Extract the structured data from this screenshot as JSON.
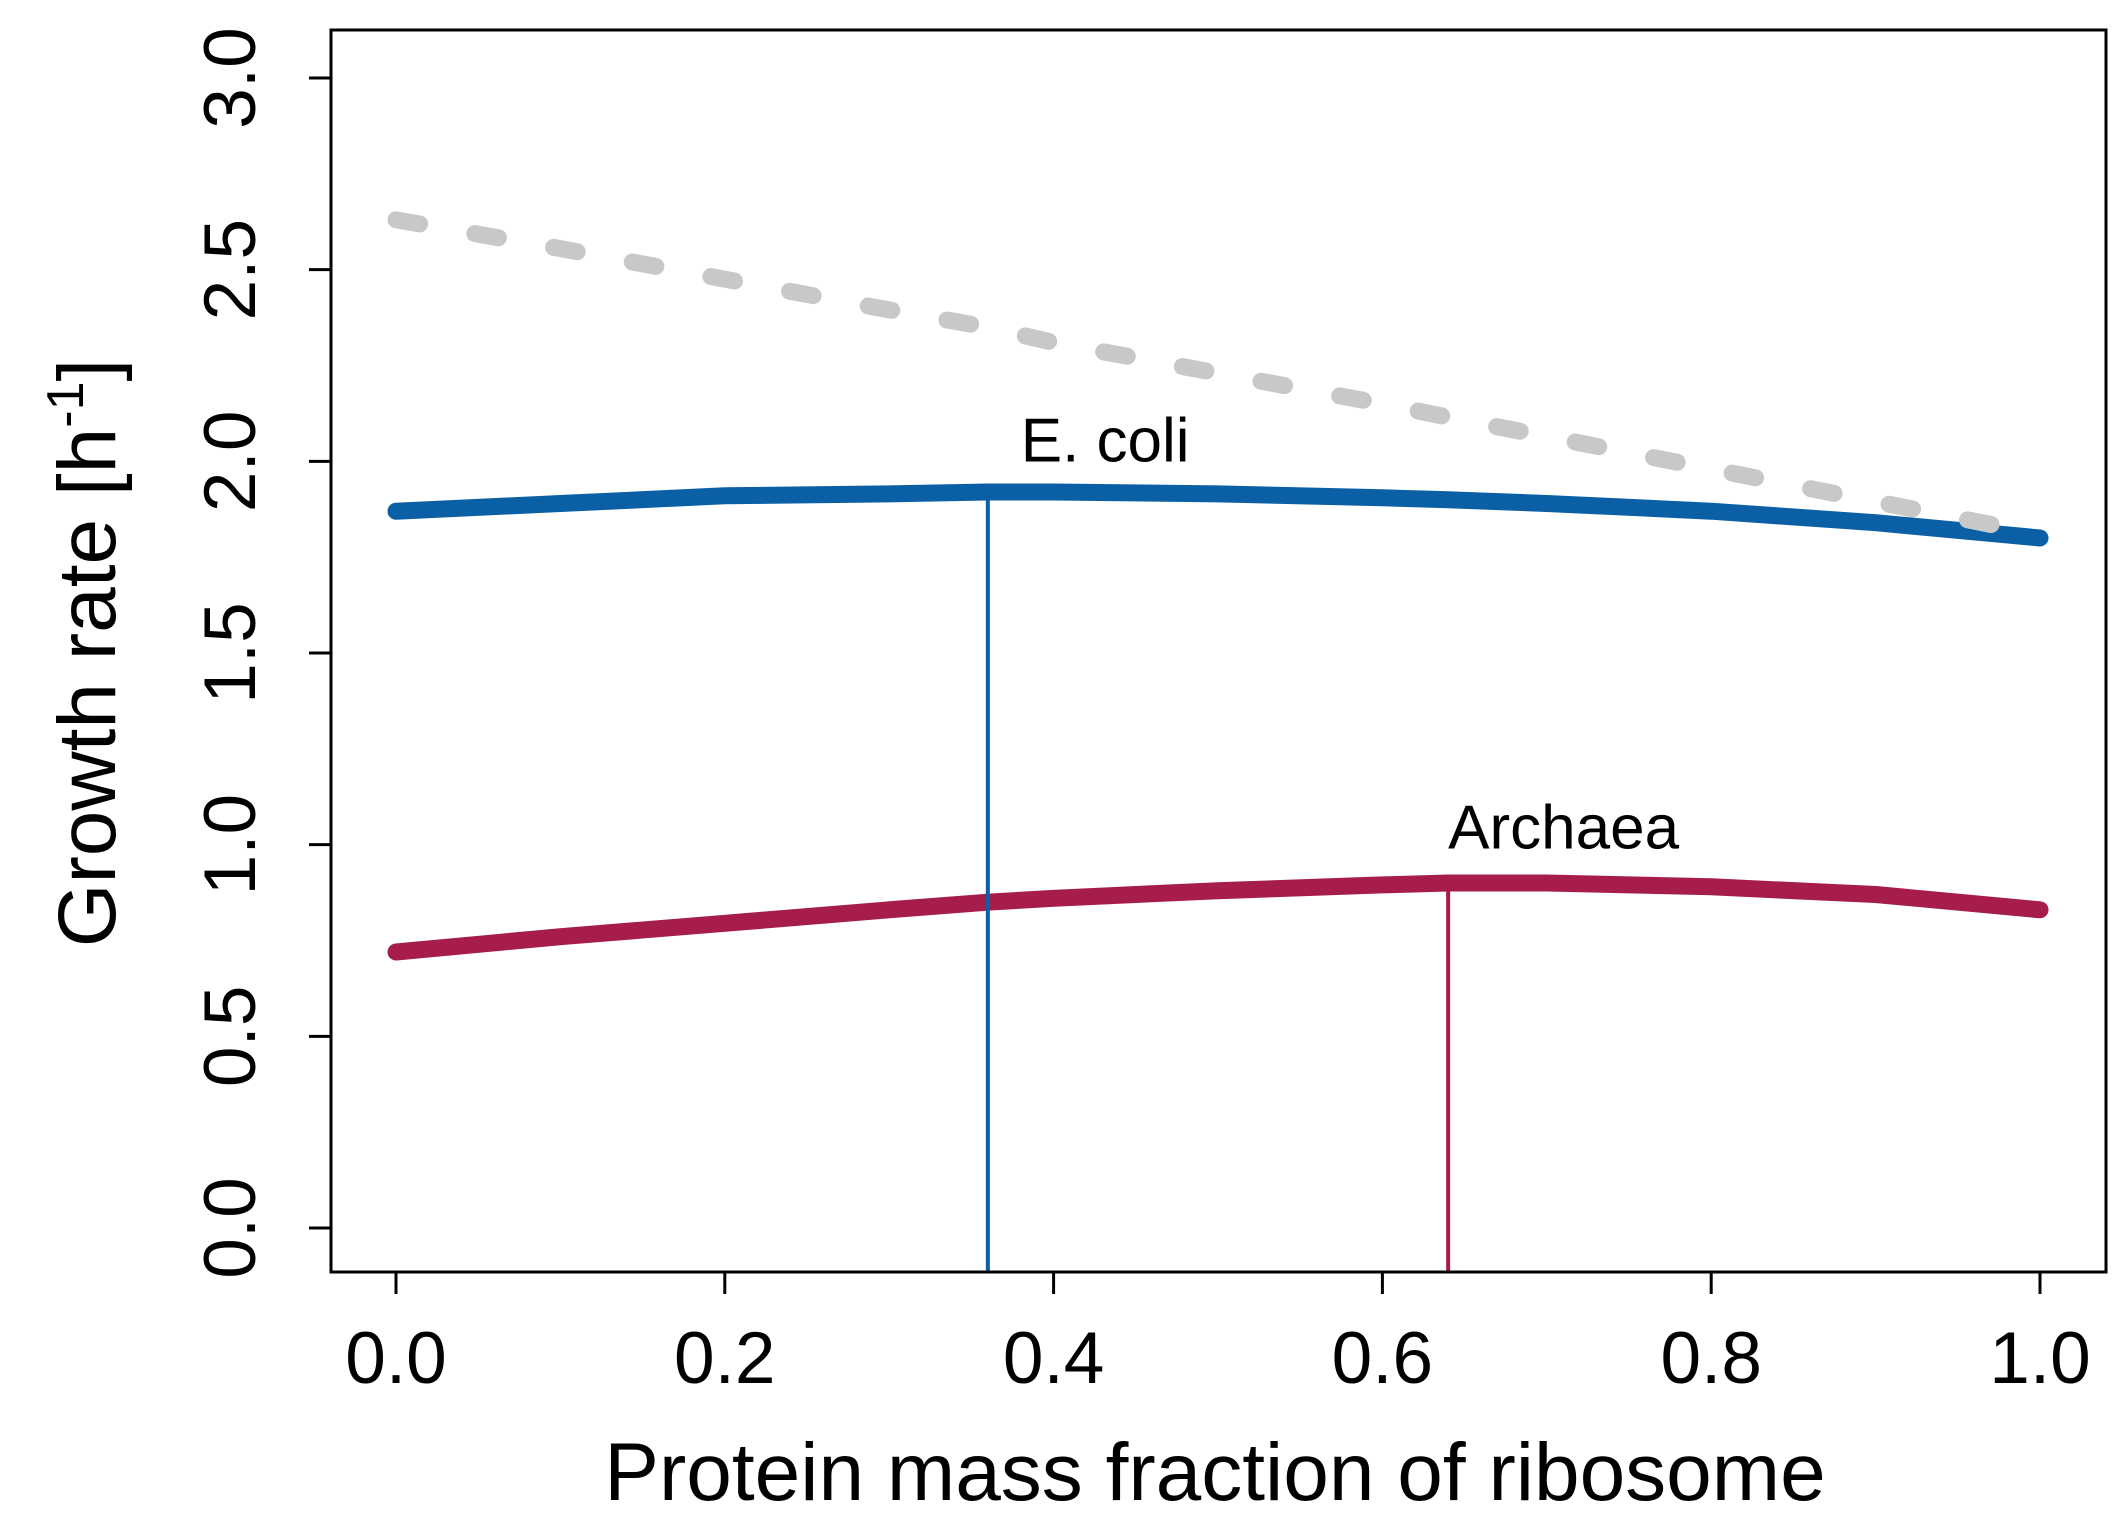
{
  "chart_data": {
    "type": "line",
    "title": "",
    "xlabel": "Protein mass fraction of ribosome",
    "ylabel_main": "Growth rate [h",
    "ylabel_sup": "-1",
    "ylabel_close": "]",
    "xlim": [
      0.0,
      1.0
    ],
    "ylim": [
      0.0,
      3.0
    ],
    "grid": false,
    "x_ticks": [
      "0.0",
      "0.2",
      "0.4",
      "0.6",
      "0.8",
      "1.0"
    ],
    "y_ticks": [
      "0.0",
      "0.5",
      "1.0",
      "1.5",
      "2.0",
      "2.5",
      "3.0"
    ],
    "x": [
      0.0,
      0.1,
      0.2,
      0.3,
      0.36,
      0.4,
      0.5,
      0.6,
      0.64,
      0.7,
      0.8,
      0.9,
      1.0
    ],
    "series": [
      {
        "name": "E. coli",
        "color": "#0b5fa5",
        "style": "solid",
        "values": [
          1.87,
          1.89,
          1.91,
          1.915,
          1.92,
          1.92,
          1.915,
          1.905,
          1.9,
          1.89,
          1.87,
          1.84,
          1.8
        ]
      },
      {
        "name": "Archaea",
        "color": "#a61c4a",
        "style": "solid",
        "values": [
          0.72,
          0.76,
          0.795,
          0.83,
          0.85,
          0.86,
          0.88,
          0.895,
          0.9,
          0.9,
          0.89,
          0.87,
          0.83
        ]
      },
      {
        "color": "#c8c8c8",
        "style": "dashed",
        "values": [
          2.63,
          2.555,
          2.475,
          2.395,
          2.35,
          2.31,
          2.23,
          2.15,
          2.115,
          2.065,
          1.98,
          1.895,
          1.81
        ]
      }
    ],
    "optimum_lines": [
      {
        "series": "E. coli",
        "x": 0.36,
        "y": 1.92,
        "color": "#0b5fa5"
      },
      {
        "series": "Archaea",
        "x": 0.64,
        "y": 0.9,
        "color": "#a61c4a"
      }
    ],
    "annotations": [
      {
        "text": "E. coli",
        "x": 0.38,
        "y": 2.0
      },
      {
        "text": "Archaea",
        "x": 0.64,
        "y": 0.99
      }
    ]
  }
}
